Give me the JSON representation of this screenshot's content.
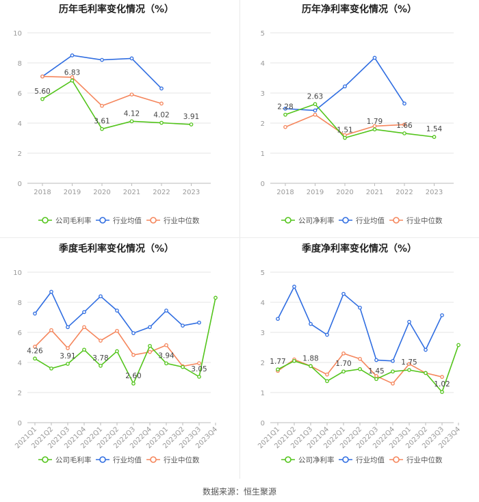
{
  "colors": {
    "company": "#52c41a",
    "avg": "#2f6de1",
    "median": "#f5855b",
    "grid": "#e6e6e6",
    "axis": "#999999",
    "label": "#444444"
  },
  "legend": {
    "avg_label": "行业均值",
    "median_label": "行业中位数"
  },
  "source": "数据来源：恒生聚源",
  "chart_data": [
    {
      "type": "line",
      "title": "历年毛利率变化情况（%）",
      "categories": [
        "2018",
        "2019",
        "2020",
        "2021",
        "2022",
        "2023"
      ],
      "ylim": [
        0,
        10
      ],
      "yticks": [
        0,
        2,
        4,
        6,
        8,
        10
      ],
      "series": [
        {
          "name": "公司毛利率",
          "key": "company",
          "values": [
            5.6,
            6.83,
            3.61,
            4.12,
            4.02,
            3.91
          ],
          "labels": [
            "5.60",
            "6.83",
            "3.61",
            "4.12",
            "4.02",
            "3.91"
          ]
        },
        {
          "name": "行业均值",
          "key": "avg",
          "values": [
            7.1,
            8.5,
            8.2,
            8.3,
            6.3,
            null
          ]
        },
        {
          "name": "行业中位数",
          "key": "median",
          "values": [
            7.1,
            7.05,
            5.15,
            5.9,
            5.3,
            null
          ]
        }
      ]
    },
    {
      "type": "line",
      "title": "历年净利率变化情况（%）",
      "categories": [
        "2018",
        "2019",
        "2020",
        "2021",
        "2022",
        "2023"
      ],
      "ylim": [
        0,
        5
      ],
      "yticks": [
        0,
        1,
        2,
        3,
        4,
        5
      ],
      "series": [
        {
          "name": "公司净利率",
          "key": "company",
          "values": [
            2.28,
            2.63,
            1.51,
            1.79,
            1.66,
            1.54
          ],
          "labels": [
            "2.28",
            "2.63",
            "1.51",
            "1.79",
            "1.66",
            "1.54"
          ]
        },
        {
          "name": "行业均值",
          "key": "avg",
          "values": [
            2.48,
            2.42,
            3.22,
            4.17,
            2.65,
            null
          ]
        },
        {
          "name": "行业中位数",
          "key": "median",
          "values": [
            1.87,
            2.28,
            1.6,
            1.9,
            1.95,
            null
          ]
        }
      ]
    },
    {
      "type": "line",
      "title": "季度毛利率变化情况（%）",
      "categories": [
        "2021Q1",
        "2021Q2",
        "2021Q3",
        "2021Q4",
        "2022Q1",
        "2022Q2",
        "2022Q3",
        "2022Q4",
        "2023Q1",
        "2023Q2",
        "2023Q3",
        "2023Q4"
      ],
      "ylim": [
        0,
        10
      ],
      "yticks": [
        0,
        2,
        4,
        6,
        8,
        10
      ],
      "series": [
        {
          "name": "公司毛利率",
          "key": "company",
          "values": [
            4.26,
            3.6,
            3.91,
            4.85,
            3.78,
            4.75,
            2.6,
            5.1,
            3.94,
            3.7,
            3.05,
            8.3
          ],
          "labels": [
            "4.26",
            "",
            "3.91",
            "",
            "3.78",
            "",
            "2.60",
            "",
            "3.94",
            "",
            "3.05",
            ""
          ]
        },
        {
          "name": "行业均值",
          "key": "avg",
          "values": [
            7.25,
            8.7,
            6.35,
            7.35,
            8.4,
            7.45,
            5.95,
            6.35,
            7.45,
            6.45,
            6.65,
            null
          ]
        },
        {
          "name": "行业中位数",
          "key": "median",
          "values": [
            5.05,
            6.15,
            4.95,
            6.35,
            5.45,
            6.1,
            4.5,
            4.7,
            5.15,
            3.75,
            3.95,
            null
          ]
        }
      ]
    },
    {
      "type": "line",
      "title": "季度净利率变化情况（%）",
      "categories": [
        "2021Q1",
        "2021Q2",
        "2021Q3",
        "2021Q4",
        "2022Q1",
        "2022Q2",
        "2022Q3",
        "2022Q4",
        "2023Q1",
        "2023Q2",
        "2023Q3",
        "2023Q4"
      ],
      "ylim": [
        0,
        5
      ],
      "yticks": [
        0,
        1,
        2,
        3,
        4,
        5
      ],
      "series": [
        {
          "name": "公司净利率",
          "key": "company",
          "values": [
            1.77,
            2.05,
            1.88,
            1.38,
            1.7,
            1.78,
            1.45,
            1.7,
            1.75,
            1.65,
            1.02,
            2.58
          ],
          "labels": [
            "1.77",
            "",
            "1.88",
            "",
            "1.70",
            "",
            "1.45",
            "",
            "1.75",
            "",
            "1.02",
            ""
          ]
        },
        {
          "name": "行业均值",
          "key": "avg",
          "values": [
            3.45,
            4.52,
            3.28,
            2.92,
            4.28,
            3.82,
            2.08,
            2.05,
            3.35,
            2.42,
            3.57,
            null
          ]
        },
        {
          "name": "行业中位数",
          "key": "median",
          "values": [
            1.72,
            2.1,
            1.88,
            1.6,
            2.3,
            2.12,
            1.55,
            1.3,
            1.95,
            1.65,
            1.52,
            null
          ]
        }
      ]
    }
  ]
}
